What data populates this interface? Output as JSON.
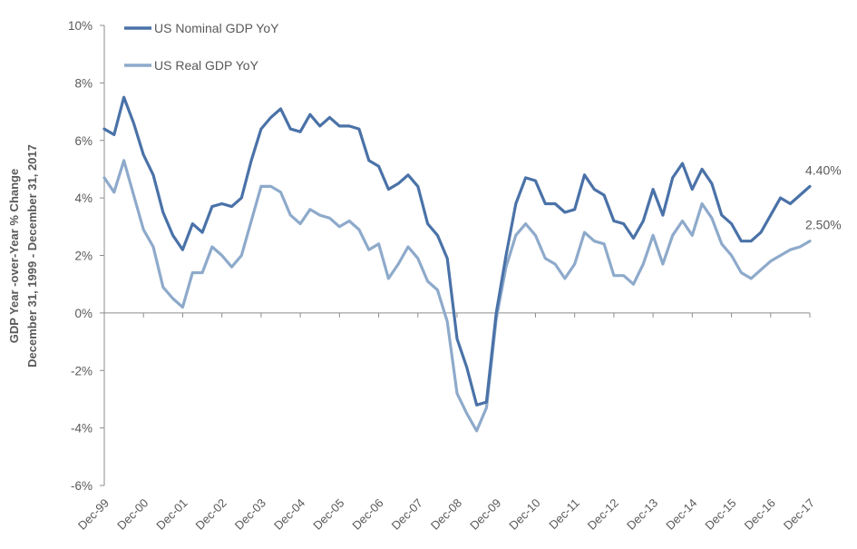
{
  "chart_data": {
    "type": "line",
    "title": "",
    "xlabel": "",
    "ylabel": [
      "GDP Year -over-Year % Change",
      "December 31, 1999 - December 31, 2017"
    ],
    "ylim": [
      -6,
      10
    ],
    "yticks": [
      -6,
      -4,
      -2,
      0,
      2,
      4,
      6,
      8,
      10
    ],
    "ytick_labels": [
      "-6%",
      "-4%",
      "-2%",
      "0%",
      "2%",
      "4%",
      "6%",
      "8%",
      "10%"
    ],
    "x_tick_labels": [
      "Dec-99",
      "Dec-00",
      "Dec-01",
      "Dec-02",
      "Dec-03",
      "Dec-04",
      "Dec-05",
      "Dec-06",
      "Dec-07",
      "Dec-08",
      "Dec-09",
      "Dec-10",
      "Dec-11",
      "Dec-12",
      "Dec-13",
      "Dec-14",
      "Dec-15",
      "Dec-16",
      "Dec-17"
    ],
    "x_frequency": "quarterly",
    "grid": false,
    "legend_position": "top-left",
    "series": [
      {
        "name": "US Nominal GDP YoY",
        "color": "#4a72a8",
        "end_label": "4.40%",
        "values": [
          6.4,
          6.2,
          7.5,
          6.6,
          5.5,
          4.8,
          3.5,
          2.7,
          2.2,
          3.1,
          2.8,
          3.7,
          3.8,
          3.7,
          4.0,
          5.3,
          6.4,
          6.8,
          7.1,
          6.4,
          6.3,
          6.9,
          6.5,
          6.8,
          6.5,
          6.5,
          6.4,
          5.3,
          5.1,
          4.3,
          4.5,
          4.8,
          4.4,
          3.1,
          2.7,
          1.9,
          -0.9,
          -1.9,
          -3.2,
          -3.1,
          0.0,
          2.0,
          3.8,
          4.7,
          4.6,
          3.8,
          3.8,
          3.5,
          3.6,
          4.8,
          4.3,
          4.1,
          3.2,
          3.1,
          2.6,
          3.2,
          4.3,
          3.4,
          4.7,
          5.2,
          4.3,
          5.0,
          4.5,
          3.4,
          3.1,
          2.5,
          2.5,
          2.8,
          3.4,
          4.0,
          3.8,
          4.1,
          4.4
        ]
      },
      {
        "name": "US Real GDP YoY",
        "color": "#8eaacb",
        "end_label": "2.50%",
        "values": [
          4.7,
          4.2,
          5.3,
          4.1,
          2.9,
          2.3,
          0.9,
          0.5,
          0.2,
          1.4,
          1.4,
          2.3,
          2.0,
          1.6,
          2.0,
          3.2,
          4.4,
          4.4,
          4.2,
          3.4,
          3.1,
          3.6,
          3.4,
          3.3,
          3.0,
          3.2,
          2.9,
          2.2,
          2.4,
          1.2,
          1.7,
          2.3,
          1.9,
          1.1,
          0.8,
          -0.3,
          -2.8,
          -3.5,
          -4.1,
          -3.3,
          -0.2,
          1.6,
          2.7,
          3.1,
          2.7,
          1.9,
          1.7,
          1.2,
          1.7,
          2.8,
          2.5,
          2.4,
          1.3,
          1.3,
          1.0,
          1.7,
          2.7,
          1.7,
          2.7,
          3.2,
          2.7,
          3.8,
          3.3,
          2.4,
          2.0,
          1.4,
          1.2,
          1.5,
          1.8,
          2.0,
          2.2,
          2.3,
          2.5
        ]
      }
    ]
  }
}
